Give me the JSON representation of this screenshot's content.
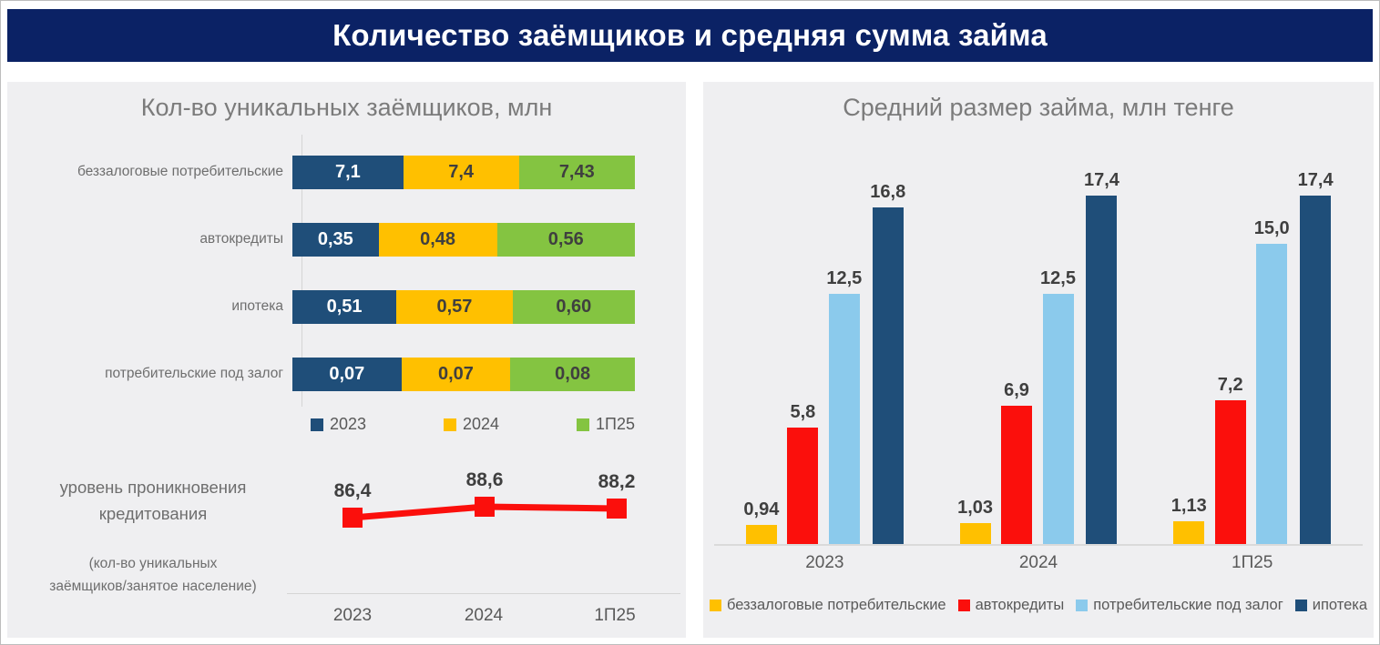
{
  "banner": {
    "title": "Количество заёмщиков и средняя сумма займа",
    "background": "#0b2265"
  },
  "colors": {
    "navy": "#1f4e79",
    "yellow": "#ffc000",
    "green": "#84c441",
    "red": "#fb0f0c",
    "light_blue": "#8bcaec",
    "panel_background": "#efeff1",
    "value_text_dark": "#3f3f3f",
    "value_text_light": "#ffffff"
  },
  "left_panel": {
    "title": "Кол-во уникальных заёмщиков, млн",
    "series_colors": [
      "#1f4e79",
      "#ffc000",
      "#84c441"
    ],
    "series_text_colors": [
      "#ffffff",
      "#3f3f3f",
      "#3f3f3f"
    ],
    "legend": [
      {
        "label": "2023",
        "color": "#1f4e79"
      },
      {
        "label": "2024",
        "color": "#ffc000"
      },
      {
        "label": "1П25",
        "color": "#84c441"
      }
    ],
    "rows": [
      {
        "category": "беззалоговые потребительские",
        "values": [
          7.1,
          7.4,
          7.43
        ],
        "values_display": [
          "7,1",
          "7,4",
          "7,43"
        ]
      },
      {
        "category": "автокредиты",
        "values": [
          0.35,
          0.48,
          0.56
        ],
        "values_display": [
          "0,35",
          "0,48",
          "0,56"
        ]
      },
      {
        "category": "ипотека",
        "values": [
          0.51,
          0.57,
          0.6
        ],
        "values_display": [
          "0,51",
          "0,57",
          "0,60"
        ]
      },
      {
        "category": "потребительские под залог",
        "values": [
          0.07,
          0.07,
          0.08
        ],
        "values_display": [
          "0,07",
          "0,07",
          "0,08"
        ]
      }
    ],
    "penetration": {
      "label_lines": [
        "уровень проникновения",
        "кредитования"
      ],
      "sublabel_lines": [
        "(кол-во уникальных",
        "заёмщиков/занятое население)"
      ],
      "line_color": "#fb0f0c",
      "points": [
        {
          "x": "2023",
          "value": 86.4,
          "display": "86,4"
        },
        {
          "x": "2024",
          "value": 88.6,
          "display": "88,6"
        },
        {
          "x": "1П25",
          "value": 88.2,
          "display": "88,2"
        }
      ]
    }
  },
  "right_panel": {
    "title": "Средний размер займа, млн тенге",
    "series_colors": [
      "#ffc000",
      "#fb0f0c",
      "#8bcaec",
      "#1f4e79"
    ],
    "legend": [
      {
        "label": "беззалоговые потребительские",
        "color": "#ffc000"
      },
      {
        "label": "автокредиты",
        "color": "#fb0f0c"
      },
      {
        "label": "потребительские под залог",
        "color": "#8bcaec"
      },
      {
        "label": "ипотека",
        "color": "#1f4e79"
      }
    ],
    "groups": [
      {
        "label": "2023",
        "bars": [
          {
            "series": "беззалоговые потребительские",
            "value": 0.94,
            "display": "0,94"
          },
          {
            "series": "автокредиты",
            "value": 5.8,
            "display": "5,8"
          },
          {
            "series": "потребительские под залог",
            "value": 12.5,
            "display": "12,5"
          },
          {
            "series": "ипотека",
            "value": 16.8,
            "display": "16,8"
          }
        ]
      },
      {
        "label": "2024",
        "bars": [
          {
            "series": "беззалоговые потребительские",
            "value": 1.03,
            "display": "1,03"
          },
          {
            "series": "автокредиты",
            "value": 6.9,
            "display": "6,9"
          },
          {
            "series": "потребительские под залог",
            "value": 12.5,
            "display": "12,5"
          },
          {
            "series": "ипотека",
            "value": 17.4,
            "display": "17,4"
          }
        ]
      },
      {
        "label": "1П25",
        "bars": [
          {
            "series": "беззалоговые потребительские",
            "value": 1.13,
            "display": "1,13"
          },
          {
            "series": "автокредиты",
            "value": 7.2,
            "display": "7,2"
          },
          {
            "series": "потребительские под залог",
            "value": 15.0,
            "display": "15,0"
          },
          {
            "series": "ипотека",
            "value": 17.4,
            "display": "17,4"
          }
        ]
      }
    ]
  },
  "chart_data": [
    {
      "type": "bar",
      "subtype": "horizontal-100pct-stacked",
      "title": "Кол-во уникальных заёмщиков, млн",
      "categories": [
        "беззалоговые потребительские",
        "автокредиты",
        "ипотека",
        "потребительские под залог"
      ],
      "series": [
        {
          "name": "2023",
          "values": [
            7.1,
            0.35,
            0.51,
            0.07
          ]
        },
        {
          "name": "2024",
          "values": [
            7.4,
            0.48,
            0.57,
            0.07
          ]
        },
        {
          "name": "1П25",
          "values": [
            7.43,
            0.56,
            0.6,
            0.08
          ]
        }
      ],
      "legend_position": "bottom",
      "grid": false
    },
    {
      "type": "line",
      "title": "уровень проникновения кредитования (кол-во уникальных заёмщиков/занятое население)",
      "x": [
        "2023",
        "2024",
        "1П25"
      ],
      "values": [
        86.4,
        88.6,
        88.2
      ],
      "line_color": "#fb0f0c",
      "marker": "square",
      "grid": false
    },
    {
      "type": "bar",
      "subtype": "vertical-grouped",
      "title": "Средний размер займа, млн тенге",
      "categories": [
        "2023",
        "2024",
        "1П25"
      ],
      "series": [
        {
          "name": "беззалоговые потребительские",
          "values": [
            0.94,
            1.03,
            1.13
          ],
          "color": "#ffc000"
        },
        {
          "name": "автокредиты",
          "values": [
            5.8,
            6.9,
            7.2
          ],
          "color": "#fb0f0c"
        },
        {
          "name": "потребительские под залог",
          "values": [
            12.5,
            12.5,
            15.0
          ],
          "color": "#8bcaec"
        },
        {
          "name": "ипотека",
          "values": [
            16.8,
            17.4,
            17.4
          ],
          "color": "#1f4e79"
        }
      ],
      "ylim": [
        0,
        18
      ],
      "legend_position": "bottom",
      "grid": false
    }
  ]
}
